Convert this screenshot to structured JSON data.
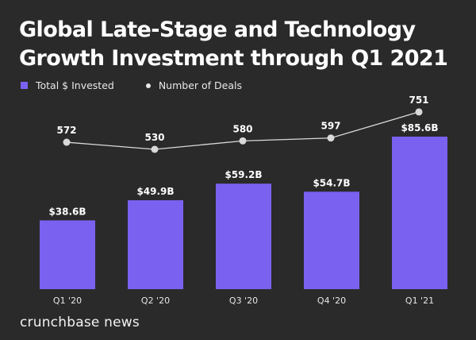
{
  "title_line1": "Global Late-Stage and Technology",
  "title_line2": "Growth Investment through Q1 2021",
  "brand": "crunchbase news",
  "colors": {
    "bar": "#7b61f0",
    "line": "#d9d9d9",
    "background": "#2b2a2b"
  },
  "chart_data": {
    "type": "bar",
    "title": "Global Late-Stage and Technology Growth Investment through Q1 2021",
    "categories": [
      "Q1 '20",
      "Q2 '20",
      "Q3 '20",
      "Q4 '20",
      "Q1 '21"
    ],
    "series": [
      {
        "name": "Total $ Invested",
        "type": "bar",
        "unit": "$B",
        "values": [
          38.6,
          49.9,
          59.2,
          54.7,
          85.6
        ],
        "labels": [
          "$38.6B",
          "$49.9B",
          "$59.2B",
          "$54.7B",
          "$85.6B"
        ]
      },
      {
        "name": "Number of Deals",
        "type": "line",
        "values": [
          572,
          530,
          580,
          597,
          751
        ],
        "labels": [
          "572",
          "530",
          "580",
          "597",
          "751"
        ]
      }
    ],
    "legend": [
      "Total $ Invested",
      "Number of Deals"
    ],
    "legend_position": "top-left",
    "xlabel": "",
    "ylabel": "",
    "grid": false
  }
}
